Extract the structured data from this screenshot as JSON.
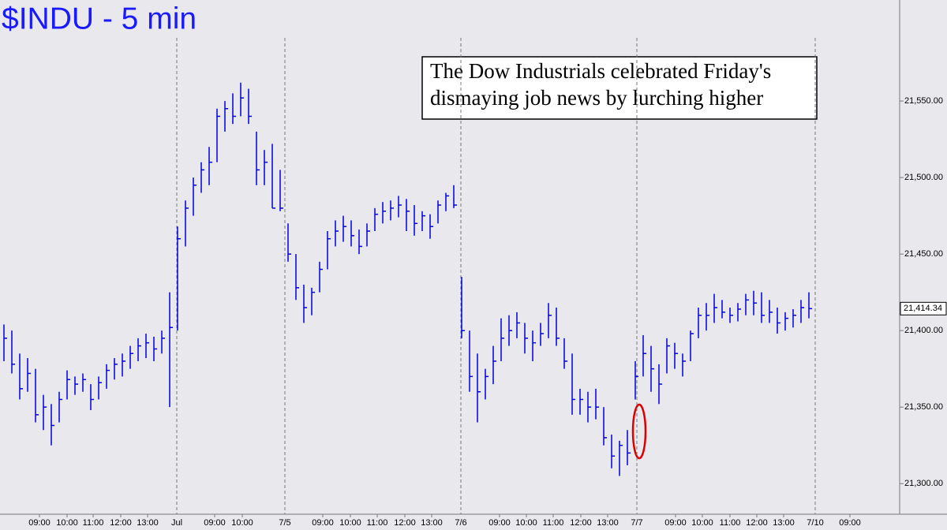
{
  "chart_data": {
    "type": "ohlc",
    "title": "$INDU - 5 min",
    "annotation": [
      "The Dow Industrials celebrated Friday's",
      "dismaying job news by lurching higher"
    ],
    "color": "#0000e0",
    "high": [
      21404,
      21400,
      21385,
      21382,
      21375,
      21358,
      21352,
      21360,
      21374,
      21370,
      21372,
      21365,
      21370,
      21378,
      21382,
      21385,
      21390,
      21395,
      21398,
      21396,
      21400,
      21425,
      21468,
      21485,
      21500,
      21510,
      21520,
      21545,
      21550,
      21555,
      21562,
      21558,
      21530,
      21518,
      21522,
      21505,
      21470,
      21450,
      21430,
      21428,
      21445,
      21465,
      21472,
      21475,
      21472,
      21466,
      21470,
      21480,
      21484,
      21485,
      21488,
      21486,
      21482,
      21478,
      21476,
      21485,
      21490,
      21495,
      21435,
      21400,
      21385,
      21375,
      21390,
      21408,
      21410,
      21412,
      21405,
      21400,
      21405,
      21418,
      21415,
      21395,
      21385,
      21362,
      21360,
      21362,
      21350,
      21332,
      21328,
      21335,
      21380,
      21397,
      21390,
      21378,
      21395,
      21392,
      21385,
      21400,
      21415,
      21418,
      21424,
      21420,
      21415,
      21418,
      21424,
      21426,
      21425,
      21420,
      21415,
      21412,
      21414,
      21420,
      21425
    ],
    "low": [
      21380,
      21372,
      21355,
      21360,
      21340,
      21335,
      21325,
      21340,
      21355,
      21358,
      21360,
      21348,
      21355,
      21362,
      21368,
      21370,
      21375,
      21380,
      21382,
      21380,
      21385,
      21350,
      21400,
      21455,
      21475,
      21490,
      21495,
      21510,
      21530,
      21535,
      21540,
      21535,
      21495,
      21495,
      21480,
      21478,
      21445,
      21420,
      21405,
      21410,
      21425,
      21440,
      21455,
      21458,
      21455,
      21450,
      21455,
      21465,
      21470,
      21472,
      21474,
      21465,
      21462,
      21465,
      21460,
      21470,
      21478,
      21480,
      21395,
      21360,
      21340,
      21355,
      21365,
      21380,
      21390,
      21395,
      21385,
      21380,
      21390,
      21395,
      21390,
      21375,
      21345,
      21345,
      21340,
      21342,
      21325,
      21310,
      21305,
      21312,
      21355,
      21370,
      21360,
      21352,
      21372,
      21375,
      21370,
      21380,
      21395,
      21400,
      21405,
      21408,
      21405,
      21406,
      21410,
      21410,
      21405,
      21405,
      21398,
      21400,
      21402,
      21405,
      21408
    ],
    "close": [
      21395,
      21378,
      21362,
      21372,
      21345,
      21350,
      21338,
      21355,
      21368,
      21365,
      21368,
      21355,
      21366,
      21374,
      21378,
      21380,
      21385,
      21390,
      21392,
      21388,
      21395,
      21402,
      21460,
      21480,
      21495,
      21505,
      21510,
      21540,
      21545,
      21540,
      21552,
      21540,
      21505,
      21510,
      21480,
      21480,
      21450,
      21428,
      21415,
      21425,
      21440,
      21460,
      21465,
      21468,
      21462,
      21455,
      21465,
      21476,
      21478,
      21480,
      21482,
      21478,
      21470,
      21475,
      21468,
      21482,
      21488,
      21482,
      21400,
      21370,
      21360,
      21370,
      21380,
      21395,
      21400,
      21405,
      21395,
      21392,
      21398,
      21410,
      21395,
      21380,
      21355,
      21355,
      21350,
      21350,
      21330,
      21318,
      21325,
      21320,
      21370,
      21385,
      21375,
      21365,
      21390,
      21385,
      21380,
      21398,
      21410,
      21410,
      21415,
      21412,
      21410,
      21414,
      21420,
      21418,
      21410,
      21412,
      21405,
      21408,
      21410,
      21415,
      21414.34
    ],
    "last_value": {
      "value": 21414.34,
      "label": "21,414.34"
    },
    "ylim": [
      21280,
      21616
    ],
    "yticks": [
      {
        "value": 21300,
        "label": "21,300.00"
      },
      {
        "value": 21350,
        "label": "21,350.00"
      },
      {
        "value": 21400,
        "label": "21,400.00"
      },
      {
        "value": 21450,
        "label": "21,450.00"
      },
      {
        "value": 21500,
        "label": "21,500.00"
      },
      {
        "value": 21550,
        "label": "21,550.00"
      }
    ],
    "xlim": [
      -0.5,
      113.5
    ],
    "xticks_hours": [
      {
        "value": 4.5,
        "label": "09:00"
      },
      {
        "value": 8,
        "label": "10:00"
      },
      {
        "value": 11.3,
        "label": "11:00"
      },
      {
        "value": 14.8,
        "label": "12:00"
      },
      {
        "value": 18.2,
        "label": "13:00"
      },
      {
        "value": 26.7,
        "label": "09:00"
      },
      {
        "value": 30.2,
        "label": "10:00"
      },
      {
        "value": 40.4,
        "label": "09:00"
      },
      {
        "value": 43.9,
        "label": "10:00"
      },
      {
        "value": 47.3,
        "label": "11:00"
      },
      {
        "value": 50.8,
        "label": "12:00"
      },
      {
        "value": 54.2,
        "label": "13:00"
      },
      {
        "value": 62.8,
        "label": "09:00"
      },
      {
        "value": 66.2,
        "label": "10:00"
      },
      {
        "value": 69.6,
        "label": "11:00"
      },
      {
        "value": 73.1,
        "label": "12:00"
      },
      {
        "value": 76.5,
        "label": "13:00"
      },
      {
        "value": 85.1,
        "label": "09:00"
      },
      {
        "value": 88.5,
        "label": "10:00"
      },
      {
        "value": 92,
        "label": "11:00"
      },
      {
        "value": 95.4,
        "label": "12:00"
      },
      {
        "value": 98.8,
        "label": "13:00"
      },
      {
        "value": 107.2,
        "label": "09:00"
      }
    ],
    "xticks_days": [
      {
        "value": 21.9,
        "label": "Jul"
      },
      {
        "value": 35.6,
        "label": "7/5"
      },
      {
        "value": 57.9,
        "label": "7/6"
      },
      {
        "value": 80.2,
        "label": "7/7"
      },
      {
        "value": 102.8,
        "label": "7/10"
      }
    ],
    "day_separators": true
  }
}
